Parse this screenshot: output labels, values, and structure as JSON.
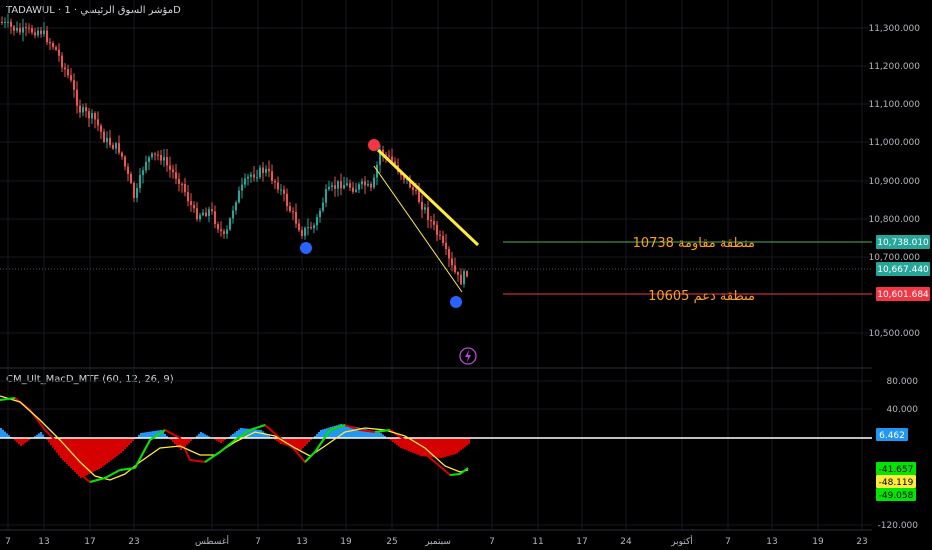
{
  "header": {
    "title": "TADAWUL · مؤشر السوق الرئيسي · 1D"
  },
  "indicator": {
    "title": "CM_Ult_MacD_MTF (60, 12, 26, 9)"
  },
  "annotations": {
    "resistance": "منطقة مقاومة 10738",
    "support": "منطقة دعم  10605"
  },
  "price_axis": {
    "ticks": [
      "11,300.000",
      "11,200.000",
      "11,100.000",
      "11,000.000",
      "10,900.000",
      "10,800.000",
      "10,700.000",
      "10,500.000"
    ],
    "resistance_tag": "10,738.010",
    "last_tag": "10,667.440",
    "support_tag": "10,601.684"
  },
  "macd_axis": {
    "ticks": [
      "80.000",
      "40.000",
      "-120.000"
    ],
    "zero_tag": "6.462",
    "tag1": "-41.657",
    "tag2": "-48.119",
    "tag3": "-49.058"
  },
  "time_axis": {
    "ticks": [
      "7",
      "13",
      "17",
      "23",
      "أغسطس",
      "7",
      "13",
      "19",
      "25",
      "سبتمبر",
      "7",
      "11",
      "17",
      "24",
      "أكتوبر",
      "7",
      "13",
      "19",
      "23"
    ]
  },
  "colors": {
    "up": "#26a69a",
    "down": "#ef5350",
    "resistance_line": "#4caf50",
    "support_line": "#f23645",
    "trend": "#ffeb3b",
    "blue_dot": "#2962ff",
    "red_dot": "#f23645"
  }
}
